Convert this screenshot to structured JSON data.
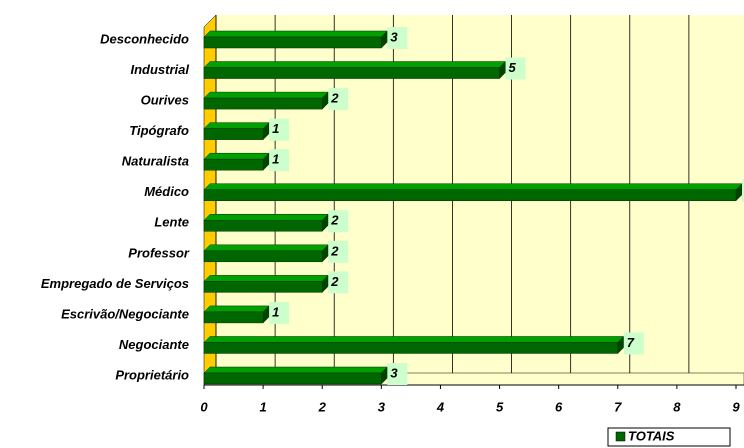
{
  "chart_data": {
    "type": "bar",
    "orientation": "horizontal",
    "categories": [
      "Desconhecido",
      "Industrial",
      "Ourives",
      "Tipógrafo",
      "Naturalista",
      "Médico",
      "Lente",
      "Professor",
      "Empregado de Serviços",
      "Escrivão/Negociante",
      "Negociante",
      "Proprietário"
    ],
    "series": [
      {
        "name": "TOTAIS",
        "color": "#006600",
        "values": [
          3,
          5,
          2,
          1,
          1,
          9,
          2,
          2,
          2,
          1,
          7,
          3
        ]
      }
    ],
    "xlim": [
      0,
      9
    ],
    "xticks": [
      0,
      1,
      2,
      3,
      4,
      5,
      6,
      7,
      8,
      9
    ],
    "grid": true,
    "legend": "bottom-right"
  }
}
